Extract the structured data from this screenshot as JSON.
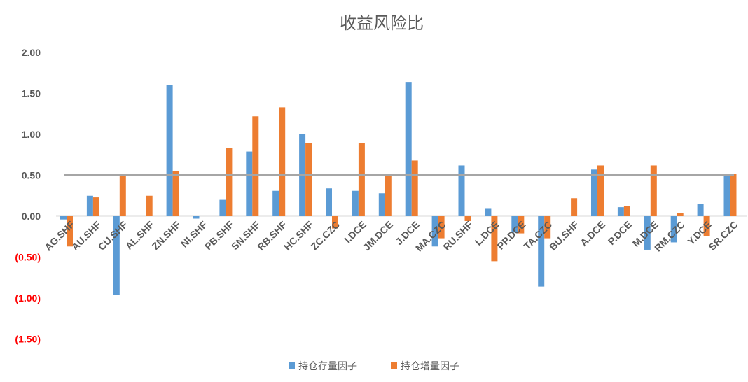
{
  "chart_data": {
    "type": "bar",
    "title": "收益风险比",
    "xlabel": "",
    "ylabel": "",
    "ylim": [
      -1.5,
      2.0
    ],
    "yticks": [
      2.0,
      1.5,
      1.0,
      0.5,
      0.0,
      -0.5,
      -1.0,
      -1.5
    ],
    "ytick_labels": [
      "2.00",
      "1.50",
      "1.00",
      "0.50",
      "0.00",
      "(0.50)",
      "(1.00)",
      "(1.50)"
    ],
    "reference_line": {
      "value": 0.5,
      "color": "#a6a6a6"
    },
    "legend_position": "bottom",
    "categories": [
      "AG.SHF",
      "AU.SHF",
      "CU.SHF",
      "AL.SHF",
      "ZN.SHF",
      "NI.SHF",
      "PB.SHF",
      "SN.SHF",
      "RB.SHF",
      "HC.SHF",
      "ZC.CZC",
      "I.DCE",
      "JM.DCE",
      "J.DCE",
      "MA.CZC",
      "RU.SHF",
      "L.DCE",
      "PP.DCE",
      "TA.CZC",
      "BU.SHF",
      "A.DCE",
      "P.DCE",
      "M.DCE",
      "RM.CZC",
      "Y.DCE",
      "SR.CZC"
    ],
    "series": [
      {
        "name": "持仓存量因子",
        "color": "#5b9bd5",
        "values": [
          -0.04,
          0.25,
          -0.96,
          0,
          1.6,
          -0.03,
          0.2,
          0.79,
          0.31,
          1.0,
          0.34,
          0.31,
          0.28,
          1.64,
          -0.37,
          0.62,
          0.09,
          -0.2,
          -0.86,
          0,
          0.57,
          0.11,
          -0.41,
          -0.32,
          0.15,
          0.49
        ]
      },
      {
        "name": "持仓增量因子",
        "color": "#ed7d31",
        "values": [
          -0.37,
          0.23,
          0.49,
          0.25,
          0.55,
          0,
          0.83,
          1.22,
          1.33,
          0.89,
          -0.15,
          0.89,
          0.49,
          0.68,
          -0.27,
          -0.06,
          -0.55,
          -0.21,
          -0.27,
          0.22,
          0.62,
          0.12,
          0.62,
          0.04,
          -0.24,
          0.52
        ]
      }
    ]
  }
}
